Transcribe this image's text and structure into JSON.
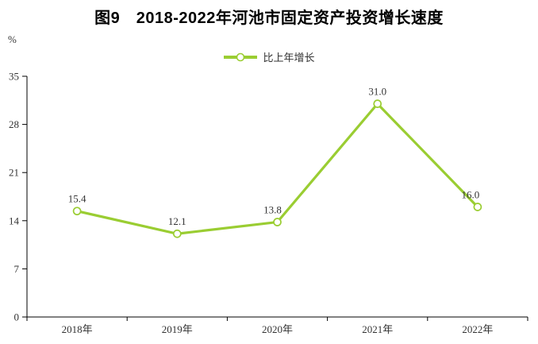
{
  "title": "图9　2018-2022年河池市固定资产投资增长速度",
  "unit_label": "%",
  "legend": {
    "label": "比上年增长",
    "color": "#9ACD32"
  },
  "chart_data": {
    "type": "line",
    "categories": [
      "2018年",
      "2019年",
      "2020年",
      "2021年",
      "2022年"
    ],
    "series": [
      {
        "name": "比上年增长",
        "values": [
          15.4,
          12.1,
          13.8,
          31.0,
          16.0
        ],
        "labels": [
          "15.4",
          "12.1",
          "13.8",
          "31.0",
          "16.0"
        ],
        "color": "#9ACD32",
        "marker": "open-circle"
      }
    ],
    "title": "图9　2018-2022年河池市固定资产投资增长速度",
    "xlabel": "",
    "ylabel": "%",
    "ylim": [
      0,
      35
    ],
    "yticks": [
      0,
      7,
      14,
      21,
      28,
      35
    ],
    "grid": false,
    "legend_position": "top-center",
    "axis_color": "#000000",
    "label_color": "#333333",
    "background_color": "#ffffff"
  }
}
